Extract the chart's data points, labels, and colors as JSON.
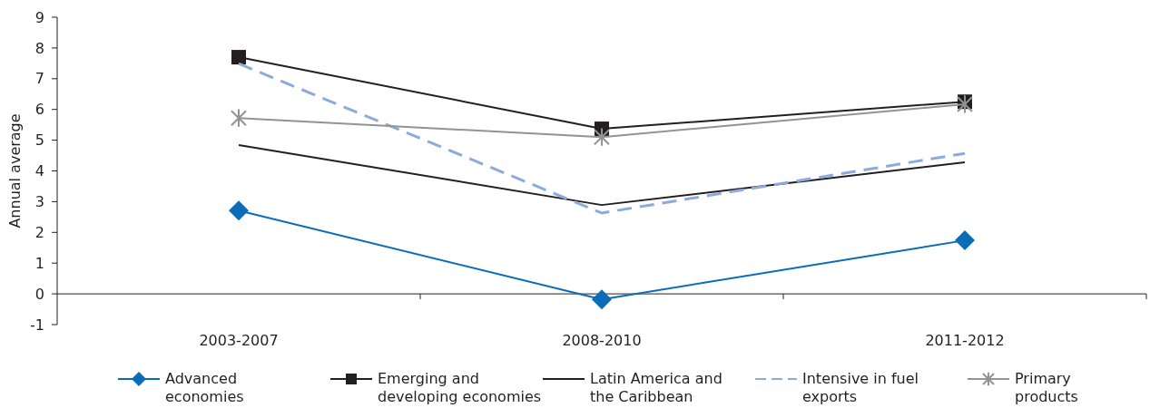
{
  "chart_data": {
    "type": "line",
    "ylabel": "Annual average",
    "categories": [
      "2003-2007",
      "2008-2010",
      "2011-2012"
    ],
    "series": [
      {
        "name": "Advanced economies",
        "color": "#0b6cb8",
        "marker": "diamond",
        "values": [
          2.71,
          -0.18,
          1.74
        ]
      },
      {
        "name": "Emerging and developing economies",
        "color": "#231f20",
        "marker": "square",
        "values": [
          7.7,
          5.37,
          6.25
        ]
      },
      {
        "name": "Latin America and the Caribbean",
        "color": "#231f20",
        "marker": "none",
        "values": [
          4.84,
          2.89,
          4.28
        ]
      },
      {
        "name": "Intensive in fuel exports",
        "color": "#8eaadb",
        "marker": "none",
        "line_style": "dashed",
        "values": [
          7.49,
          2.63,
          4.57
        ]
      },
      {
        "name": "Primary products",
        "color": "#939393",
        "marker": "cross",
        "values": [
          5.72,
          5.1,
          6.17
        ]
      }
    ],
    "ylim": [
      -1,
      9
    ],
    "yticks": [
      -1,
      0,
      1,
      2,
      3,
      4,
      5,
      6,
      7,
      8,
      9
    ],
    "legend": "bottom"
  }
}
